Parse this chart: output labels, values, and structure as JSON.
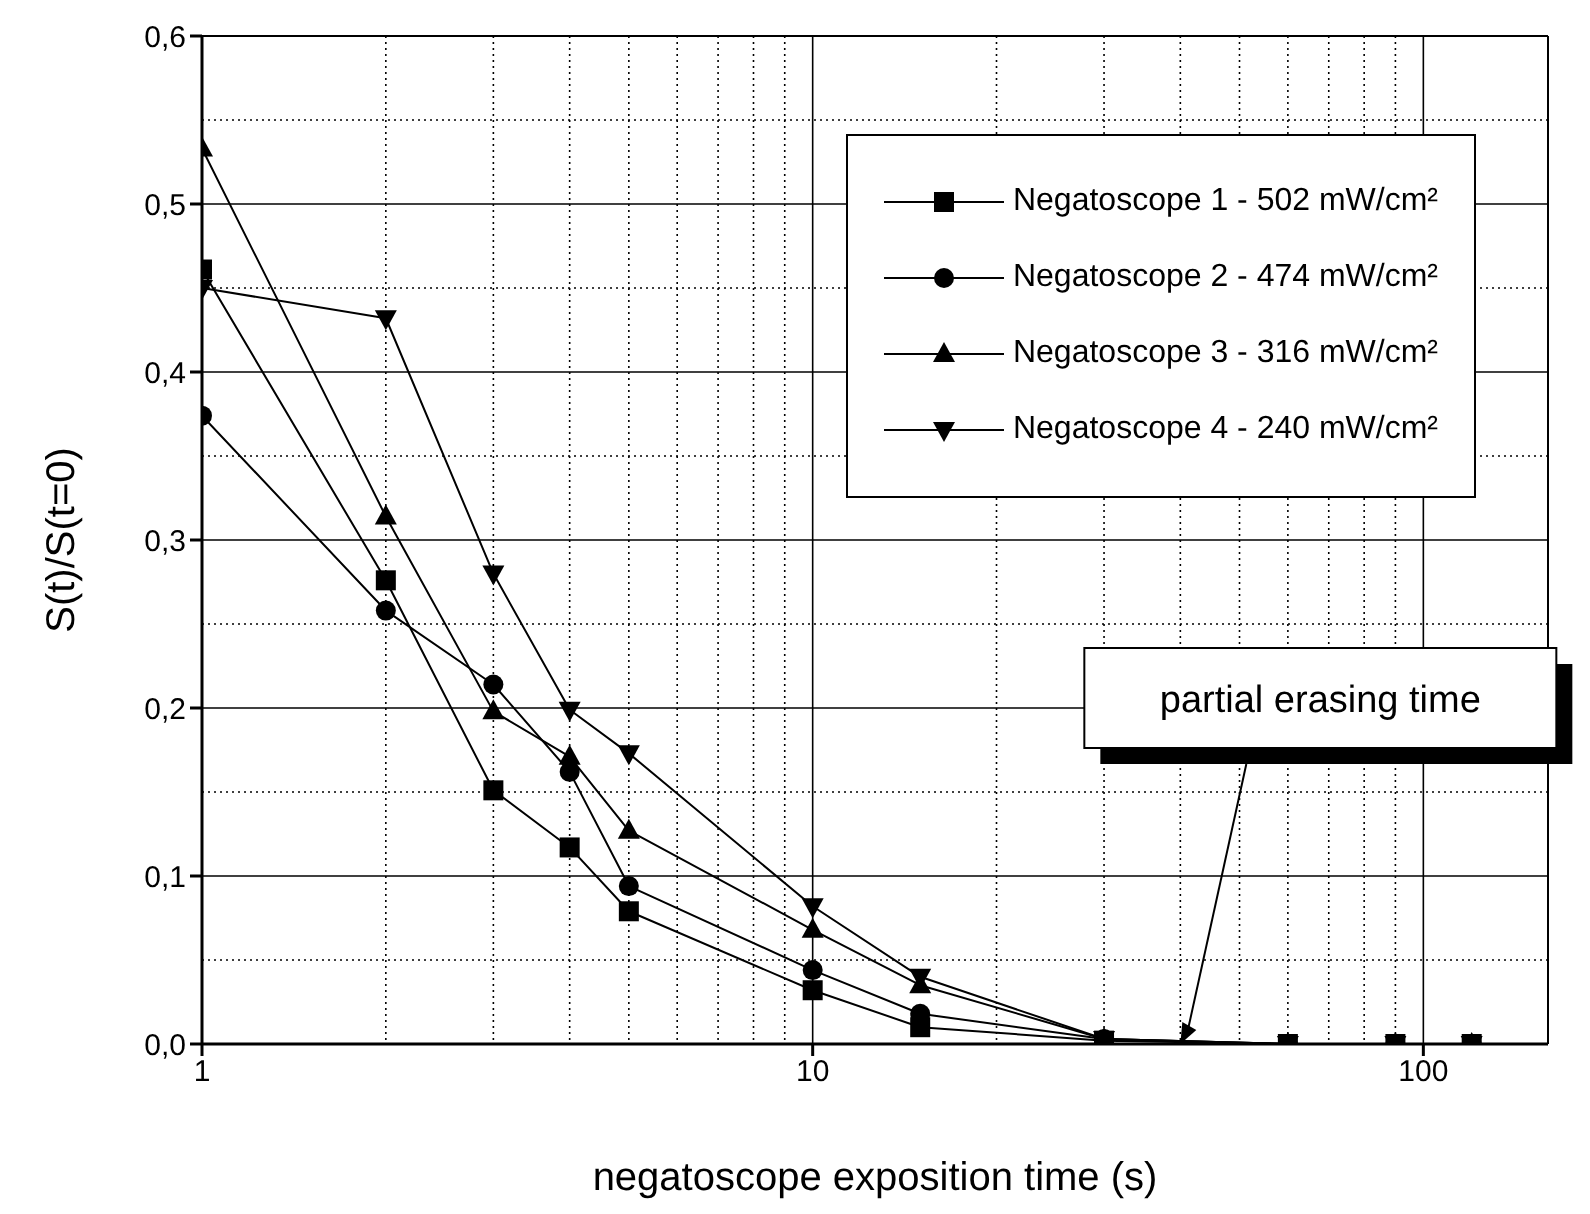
{
  "chart_data": {
    "type": "line",
    "xlabel": "negatoscope exposition time (s)",
    "ylabel": "S(t)/S(t=0)",
    "log": "x",
    "xlim": [
      1,
      160
    ],
    "xticks": [
      1,
      10,
      100
    ],
    "ylim": [
      0,
      0.6
    ],
    "yticks": [
      {
        "value": 0,
        "label": "0,0"
      },
      {
        "value": 0.1,
        "label": "0,1"
      },
      {
        "value": 0.2,
        "label": "0,2"
      },
      {
        "value": 0.3,
        "label": "0,3"
      },
      {
        "value": 0.4,
        "label": "0,4"
      },
      {
        "value": 0.5,
        "label": "0,5"
      },
      {
        "value": 0.6,
        "label": "0,6"
      }
    ],
    "grid": true,
    "legend": "top right",
    "x": [
      1,
      2,
      3,
      4,
      5,
      10,
      15,
      30,
      60,
      90,
      120
    ],
    "series": [
      {
        "name": "Negatoscope 1 - 502 mW/cm²",
        "color": "#000000",
        "marker": "square",
        "values": [
          0.461,
          0.276,
          0.151,
          0.117,
          0.079,
          0.032,
          0.01,
          0.002,
          0,
          0,
          0
        ]
      },
      {
        "name": "Negatoscope 2 - 474 mW/cm²",
        "color": "#000000",
        "marker": "circle",
        "values": [
          0.374,
          0.258,
          0.214,
          0.162,
          0.094,
          0.044,
          0.018,
          0.003,
          0,
          0,
          0
        ]
      },
      {
        "name": "Negatoscope 3 - 316 mW/cm²",
        "color": "#000000",
        "marker": "triangle",
        "values": [
          0.533,
          0.314,
          0.198,
          0.171,
          0.127,
          0.068,
          0.035,
          0.003,
          0,
          0,
          0
        ]
      },
      {
        "name": "Negatoscope 4 - 240 mW/cm²",
        "color": "#000000",
        "marker": "triangle-down",
        "values": [
          0.45,
          0.432,
          0.28,
          0.199,
          0.173,
          0.082,
          0.04,
          0.003,
          0,
          0,
          0
        ]
      }
    ],
    "annotations": [
      {
        "text": "partial erasing time",
        "x": 40,
        "y": 0
      }
    ]
  }
}
